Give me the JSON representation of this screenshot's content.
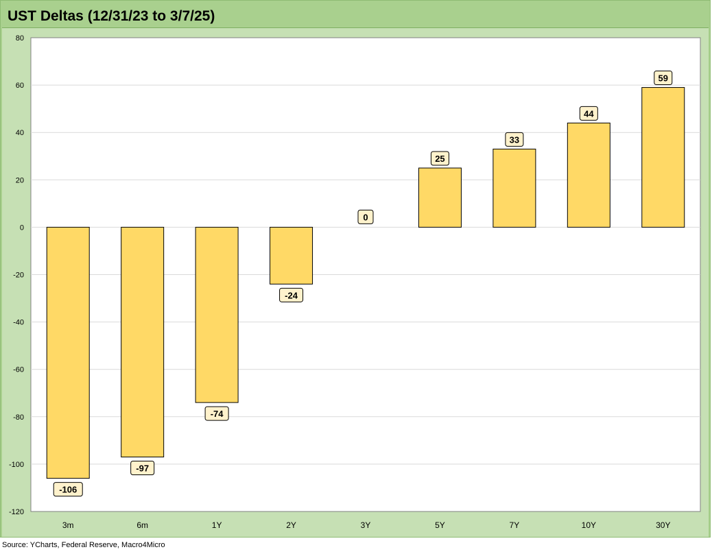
{
  "title": "UST Deltas (12/31/23 to 3/7/25)",
  "source": "Source: YCharts, Federal Reserve, Macro4Micro",
  "colors": {
    "bar": "#ffd966",
    "bar_outline": "#000000",
    "label_bg": "#fff2cc",
    "plot_bg": "#ffffff",
    "frame": "#c6e0b4",
    "title_bg": "#a9d08e",
    "grid": "#d9d9d9"
  },
  "chart_data": {
    "type": "bar",
    "categories": [
      "3m",
      "6m",
      "1Y",
      "2Y",
      "3Y",
      "5Y",
      "7Y",
      "10Y",
      "30Y"
    ],
    "values": [
      -106,
      -97,
      -74,
      -24,
      0,
      25,
      33,
      44,
      59
    ],
    "title": "UST Deltas (12/31/23 to 3/7/25)",
    "xlabel": "",
    "ylabel": "",
    "ylim": [
      -120,
      80
    ],
    "yticks": [
      80,
      60,
      40,
      20,
      0,
      -20,
      -40,
      -60,
      -80,
      -100,
      -120
    ],
    "grid": true,
    "legend": "none",
    "data_labels": true
  }
}
